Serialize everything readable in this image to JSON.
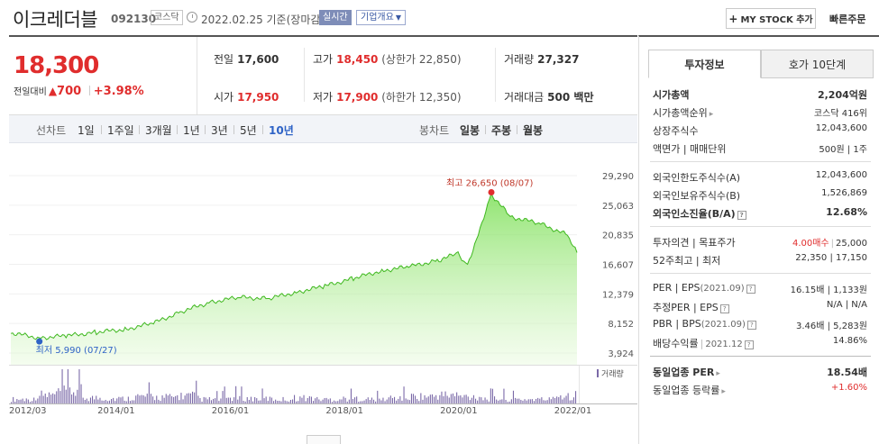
{
  "header": {
    "title": "이크레더블",
    "code": "092130",
    "market": "코스닥",
    "date": "2022.02.25 기준(장마감)",
    "realtime": "실시간",
    "company_info": "기업개요",
    "mystock": "MY STOCK 추가",
    "quick_order": "빠른주문"
  },
  "price": {
    "current": "18,300",
    "diff_label": "전일대비",
    "change": "700",
    "change_pct": "+3.98%"
  },
  "quote": {
    "prev_label": "전일",
    "prev": "17,600",
    "high_label": "고가",
    "high": "18,450",
    "upper_limit": "(상한가 22,850)",
    "volume_label": "거래량",
    "volume": "27,327",
    "open_label": "시가",
    "open": "17,950",
    "low_label": "저가",
    "low": "17,900",
    "lower_limit": "(하한가 12,350)",
    "amount_label": "거래대금",
    "amount": "500 백만"
  },
  "period_tabs": {
    "line_label": "선차트",
    "line_items": [
      "1일",
      "1주일",
      "3개월",
      "1년",
      "3년",
      "5년",
      "10년"
    ],
    "active": "10년",
    "candle_label": "봉차트",
    "candle_items": [
      "일봉",
      "주봉",
      "월봉"
    ]
  },
  "chart_data": {
    "type": "area",
    "x_range": [
      "2012/03",
      "2022/02"
    ],
    "x_tick_labels": [
      "2012/03",
      "2014/01",
      "2016/01",
      "2018/01",
      "2020/01",
      "2022/01"
    ],
    "y_tick_labels": [
      "29,290",
      "25,063",
      "20,835",
      "16,607",
      "12,379",
      "8,152",
      "3,924"
    ],
    "ylim": [
      3924,
      29290
    ],
    "max_label": "최고 26,650 (08/07)",
    "min_label": "최저 5,990 (07/27)",
    "volume_legend": "거래량",
    "x": [
      "2012/03",
      "2012/09",
      "2013/03",
      "2013/09",
      "2014/03",
      "2014/09",
      "2015/03",
      "2015/09",
      "2016/03",
      "2016/09",
      "2017/03",
      "2017/09",
      "2018/03",
      "2018/09",
      "2019/03",
      "2019/09",
      "2020/01",
      "2020/03",
      "2020/06",
      "2020/08",
      "2020/12",
      "2021/06",
      "2021/12",
      "2022/02"
    ],
    "values": [
      6800,
      6100,
      6400,
      6900,
      7300,
      8200,
      9900,
      11200,
      11900,
      11700,
      12600,
      13500,
      14600,
      15700,
      16300,
      17200,
      18200,
      16400,
      22600,
      26650,
      23400,
      22500,
      20800,
      18300
    ],
    "volume": [
      0.3,
      0.6,
      0.9,
      0.4,
      0.35,
      0.5,
      0.45,
      0.55,
      0.3,
      0.4,
      0.35,
      0.3,
      0.4,
      0.3,
      0.35,
      0.3,
      0.4,
      0.5,
      0.6,
      0.5,
      0.35,
      0.3,
      0.3,
      0.6
    ]
  },
  "right_panel": {
    "tab_info": "투자정보",
    "tab_hoga": "호가 10단계",
    "market_cap_label": "시가총액",
    "market_cap": "2,204억원",
    "cap_rank_label": "시가총액순위",
    "cap_rank": "코스닥 416위",
    "shares_label": "상장주식수",
    "shares": "12,043,600",
    "par_label": "액면가 | 매매단위",
    "par": "500원 | 1주",
    "foreign_limit_label": "외국인한도주식수(A)",
    "foreign_limit": "12,043,600",
    "foreign_hold_label": "외국인보유주식수(B)",
    "foreign_hold": "1,526,869",
    "foreign_ratio_label": "외국인소진율(B/A)",
    "foreign_ratio": "12.68%",
    "opinion_label": "투자의견 | 목표주가",
    "opinion": "4.00매수",
    "target": "25,000",
    "w52_label": "52주최고 | 최저",
    "w52": "22,350 | 17,150",
    "per_label": "PER | EPS",
    "per_period": "(2021.09)",
    "per": "16.15배 | 1,133원",
    "est_per_label": "추정PER | EPS",
    "est_per": "N/A | N/A",
    "pbr_label": "PBR | BPS",
    "pbr_period": "(2021.09)",
    "pbr": "3.46배 | 5,283원",
    "div_label": "배당수익률",
    "div_period": "2021.12",
    "div": "14.86%",
    "industry_per_label": "동일업종 PER",
    "industry_per": "18.54배",
    "industry_rate_label": "동일업종 등락률",
    "industry_rate": "+1.60%"
  }
}
